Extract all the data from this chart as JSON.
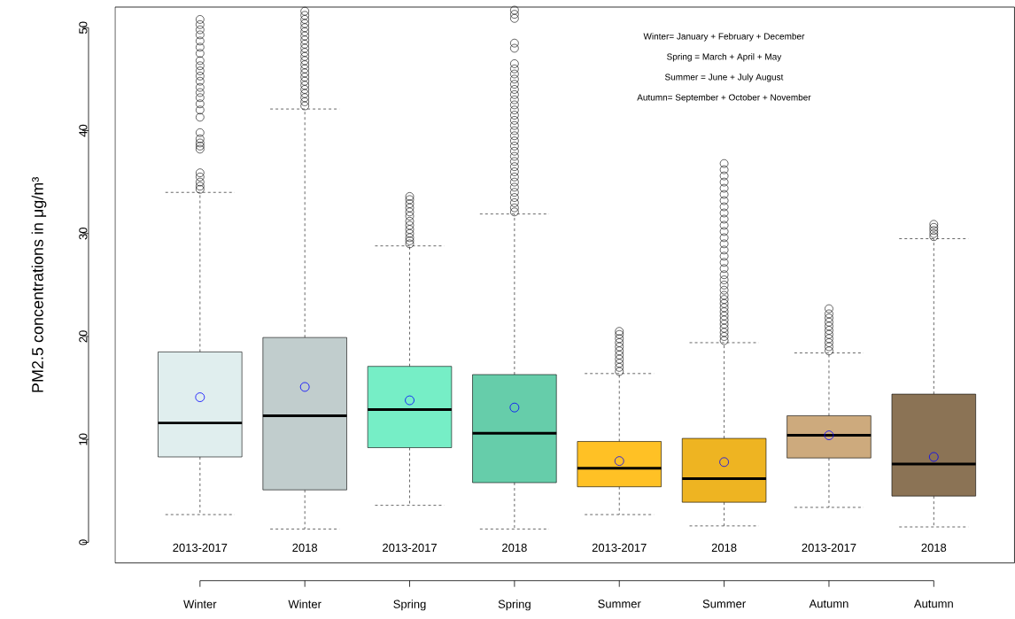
{
  "chart_data": {
    "type": "box",
    "ylabel": "PM2.5 concentrations in μg/m³",
    "categories": [
      "Winter",
      "Winter",
      "Spring",
      "Spring",
      "Summer",
      "Summer",
      "Autumn",
      "Autumn"
    ],
    "colors": [
      "#e0eeee",
      "#c1cdcd",
      "#76eec6",
      "#66cdaa",
      "#ffc125",
      "#eeb422",
      "#cdaa7d",
      "#8b7355"
    ],
    "boxes": [
      {
        "low": 2.7,
        "q1": 8.3,
        "median": 11.6,
        "q3": 18.5,
        "high": 34.0,
        "mean": 14.1,
        "outliers": [
          34.3,
          34.6,
          35.0,
          35.5,
          35.9,
          38.2,
          38.5,
          38.8,
          39.2,
          39.8,
          41.3,
          42.0,
          42.6,
          43.2,
          43.7,
          44.2,
          44.8,
          45.3,
          45.8,
          46.3,
          46.8,
          47.5,
          48.1,
          48.7,
          49.3,
          49.8,
          50.3,
          50.8
        ]
      },
      {
        "low": 1.3,
        "q1": 5.1,
        "median": 12.3,
        "q3": 19.9,
        "high": 42.1,
        "mean": 15.1,
        "outliers": [
          42.4,
          42.8,
          43.2,
          43.6,
          44.0,
          44.4,
          44.8,
          45.2,
          45.6,
          46.0,
          46.4,
          46.8,
          47.2,
          47.6,
          48.0,
          48.4,
          48.8,
          49.2,
          49.6,
          50.0,
          50.4,
          50.8,
          51.2,
          51.6
        ]
      },
      {
        "low": 3.6,
        "q1": 9.2,
        "median": 12.9,
        "q3": 17.1,
        "high": 28.8,
        "mean": 13.8,
        "outliers": [
          29.0,
          29.3,
          29.6,
          30.0,
          30.4,
          30.8,
          31.2,
          31.7,
          32.1,
          32.5,
          32.9,
          33.3,
          33.6
        ]
      },
      {
        "low": 1.3,
        "q1": 5.8,
        "median": 10.6,
        "q3": 16.3,
        "high": 31.9,
        "mean": 13.1,
        "outliers": [
          32.1,
          32.5,
          33.0,
          33.5,
          34.0,
          34.5,
          35.0,
          35.5,
          36.0,
          36.5,
          37.0,
          37.5,
          38.0,
          38.5,
          39.0,
          39.5,
          40.0,
          40.5,
          41.0,
          41.5,
          42.0,
          42.5,
          43.0,
          43.5,
          44.0,
          44.5,
          45.0,
          45.5,
          46.0,
          46.5,
          48.0,
          48.5,
          50.9,
          51.3,
          51.7
        ]
      },
      {
        "low": 2.7,
        "q1": 5.4,
        "median": 7.2,
        "q3": 9.8,
        "high": 16.4,
        "mean": 7.9,
        "outliers": [
          16.6,
          17.0,
          17.4,
          17.8,
          18.2,
          18.6,
          19.0,
          19.4,
          19.8,
          20.2,
          20.5
        ]
      },
      {
        "low": 1.6,
        "q1": 3.9,
        "median": 6.2,
        "q3": 10.1,
        "high": 19.4,
        "mean": 7.8,
        "outliers": [
          19.6,
          20.0,
          20.4,
          20.8,
          21.2,
          21.6,
          22.0,
          22.4,
          22.8,
          23.2,
          23.6,
          24.0,
          24.5,
          25.0,
          25.5,
          26.0,
          26.6,
          27.2,
          27.8,
          28.4,
          29.0,
          29.6,
          30.2,
          30.8,
          31.4,
          32.0,
          32.6,
          33.2,
          33.8,
          34.4,
          35.0,
          35.6,
          36.2,
          36.8
        ]
      },
      {
        "low": 3.4,
        "q1": 8.2,
        "median": 10.4,
        "q3": 12.3,
        "high": 18.4,
        "mean": 10.4,
        "outliers": [
          18.6,
          19.0,
          19.4,
          19.8,
          20.2,
          20.6,
          21.0,
          21.4,
          21.8,
          22.2,
          22.7
        ]
      },
      {
        "low": 1.5,
        "q1": 4.5,
        "median": 7.6,
        "q3": 14.4,
        "high": 29.5,
        "mean": 8.3,
        "outliers": [
          29.7,
          30.0,
          30.3,
          30.6,
          30.9
        ]
      }
    ],
    "ylim": [
      -2,
      52
    ],
    "yticks": [
      0,
      10,
      20,
      30,
      40,
      50
    ],
    "annotations": [
      "Winter= January + February + December",
      "Spring = March + April + May",
      "Summer = June + July  August",
      "Autumn= September + October + November",
      "2013-2017",
      "2018",
      "2013-2017",
      "2018",
      "2013-2017",
      "2018",
      "2013-2017",
      "2018"
    ]
  }
}
